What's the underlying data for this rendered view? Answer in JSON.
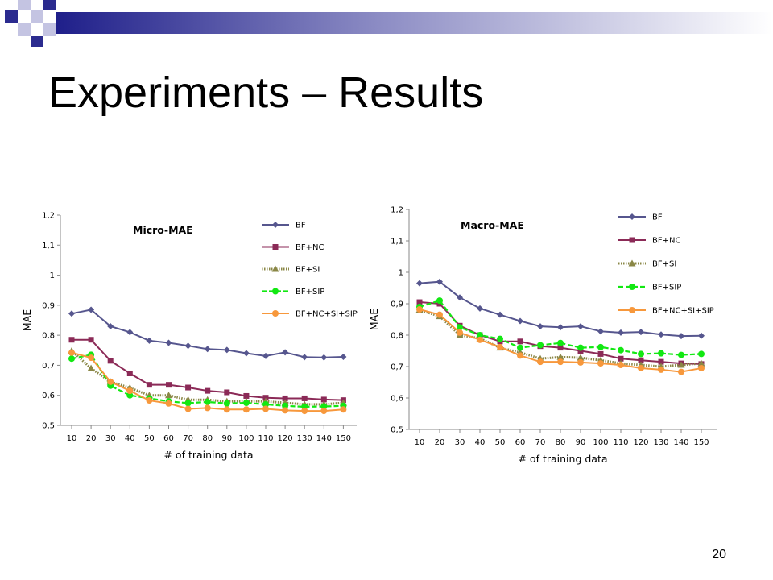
{
  "slide": {
    "title": "Experiments – Results",
    "page_number": "20"
  },
  "colors": {
    "BF": "#56568e",
    "BF+NC": "#8b2a57",
    "BF+SI": "#8a8746",
    "BF+SIP": "#12e812",
    "BF+NC+SI+SIP": "#f7983c",
    "deco_blue": "#2b2b8f",
    "deco_light": "#c4c4e2"
  },
  "chart_data": [
    {
      "type": "line",
      "title": "Micro-MAE",
      "xlabel": "# of training data",
      "ylabel": "MAE",
      "categories": [
        "10",
        "20",
        "30",
        "40",
        "50",
        "60",
        "70",
        "80",
        "90",
        "100",
        "110",
        "120",
        "130",
        "140",
        "150"
      ],
      "yticks": [
        "0,5",
        "0,6",
        "0,7",
        "0,8",
        "0,9",
        "1",
        "1,1",
        "1,2"
      ],
      "ylim": [
        0.5,
        1.2
      ],
      "grid": false,
      "legend_position": "top-right",
      "series": [
        {
          "name": "BF",
          "marker": "diamond",
          "style": "solid",
          "values": [
            0.872,
            0.885,
            0.83,
            0.81,
            0.782,
            0.775,
            0.765,
            0.754,
            0.751,
            0.74,
            0.731,
            0.743,
            0.727,
            0.726,
            0.728
          ]
        },
        {
          "name": "BF+NC",
          "marker": "square",
          "style": "solid",
          "values": [
            0.785,
            0.785,
            0.715,
            0.673,
            0.635,
            0.635,
            0.626,
            0.615,
            0.61,
            0.598,
            0.592,
            0.59,
            0.59,
            0.586,
            0.584
          ]
        },
        {
          "name": "BF+SI",
          "marker": "triangle",
          "style": "dotted",
          "values": [
            0.748,
            0.69,
            0.645,
            0.625,
            0.6,
            0.6,
            0.585,
            0.585,
            0.58,
            0.58,
            0.58,
            0.575,
            0.57,
            0.57,
            0.575
          ]
        },
        {
          "name": "BF+SIP",
          "marker": "circle",
          "style": "dashed",
          "values": [
            0.722,
            0.735,
            0.632,
            0.6,
            0.59,
            0.58,
            0.574,
            0.578,
            0.573,
            0.575,
            0.57,
            0.565,
            0.562,
            0.563,
            0.565
          ]
        },
        {
          "name": "BF+NC+SI+SIP",
          "marker": "circle",
          "style": "solid",
          "values": [
            0.742,
            0.725,
            0.645,
            0.615,
            0.583,
            0.573,
            0.555,
            0.558,
            0.553,
            0.553,
            0.555,
            0.55,
            0.548,
            0.548,
            0.553
          ]
        }
      ]
    },
    {
      "type": "line",
      "title": "Macro-MAE",
      "xlabel": "# of training data",
      "ylabel": "MAE",
      "categories": [
        "10",
        "20",
        "30",
        "40",
        "50",
        "60",
        "70",
        "80",
        "90",
        "100",
        "110",
        "120",
        "130",
        "140",
        "150"
      ],
      "yticks": [
        "0,5",
        "0,6",
        "0,7",
        "0,8",
        "0,9",
        "1",
        "1,1",
        "1,2"
      ],
      "ylim": [
        0.5,
        1.2
      ],
      "grid": false,
      "legend_position": "top-right",
      "series": [
        {
          "name": "BF",
          "marker": "diamond",
          "style": "solid",
          "values": [
            0.965,
            0.97,
            0.92,
            0.885,
            0.865,
            0.845,
            0.828,
            0.825,
            0.828,
            0.812,
            0.808,
            0.81,
            0.802,
            0.797,
            0.798
          ]
        },
        {
          "name": "BF+NC",
          "marker": "square",
          "style": "solid",
          "values": [
            0.905,
            0.9,
            0.83,
            0.8,
            0.78,
            0.78,
            0.765,
            0.76,
            0.75,
            0.74,
            0.725,
            0.72,
            0.715,
            0.71,
            0.708
          ]
        },
        {
          "name": "BF+SI",
          "marker": "triangle",
          "style": "dotted",
          "values": [
            0.88,
            0.86,
            0.8,
            0.79,
            0.76,
            0.745,
            0.725,
            0.73,
            0.728,
            0.72,
            0.71,
            0.705,
            0.7,
            0.705,
            0.71
          ]
        },
        {
          "name": "BF+SIP",
          "marker": "circle",
          "style": "dashed",
          "values": [
            0.89,
            0.91,
            0.825,
            0.8,
            0.788,
            0.76,
            0.768,
            0.775,
            0.76,
            0.762,
            0.752,
            0.74,
            0.742,
            0.737,
            0.74
          ]
        },
        {
          "name": "BF+NC+SI+SIP",
          "marker": "circle",
          "style": "solid",
          "values": [
            0.882,
            0.865,
            0.808,
            0.785,
            0.762,
            0.735,
            0.715,
            0.715,
            0.713,
            0.71,
            0.705,
            0.695,
            0.69,
            0.683,
            0.695
          ]
        }
      ]
    }
  ]
}
